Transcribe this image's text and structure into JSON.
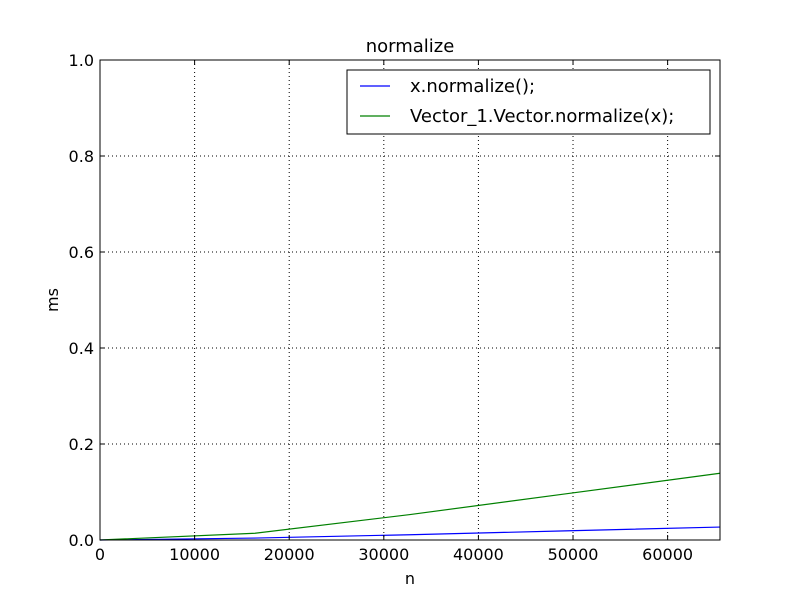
{
  "chart_data": {
    "type": "line",
    "title": "normalize",
    "xlabel": "n",
    "ylabel": "ms",
    "xlim": [
      0,
      65536
    ],
    "ylim": [
      0,
      1.0
    ],
    "xticks": [
      0,
      10000,
      20000,
      30000,
      40000,
      50000,
      60000
    ],
    "xtick_labels": [
      "0",
      "10000",
      "20000",
      "30000",
      "40000",
      "50000",
      "60000"
    ],
    "yticks": [
      0,
      0.2,
      0.4,
      0.6,
      0.8,
      1.0
    ],
    "ytick_labels": [
      "0.0",
      "0.2",
      "0.4",
      "0.6",
      "0.8",
      "1.0"
    ],
    "grid": true,
    "legend_position": "top-right",
    "series": [
      {
        "name": "x.normalize();",
        "color": "#0000ff",
        "x": [
          0,
          16384,
          32768,
          49152,
          65536
        ],
        "y": [
          0.0,
          0.004,
          0.011,
          0.019,
          0.027
        ]
      },
      {
        "name": "Vector_1.Vector.normalize(x);",
        "color": "#008000",
        "x": [
          0,
          16384,
          32768,
          49152,
          65536
        ],
        "y": [
          0.0,
          0.014,
          0.053,
          0.096,
          0.139
        ]
      }
    ]
  }
}
